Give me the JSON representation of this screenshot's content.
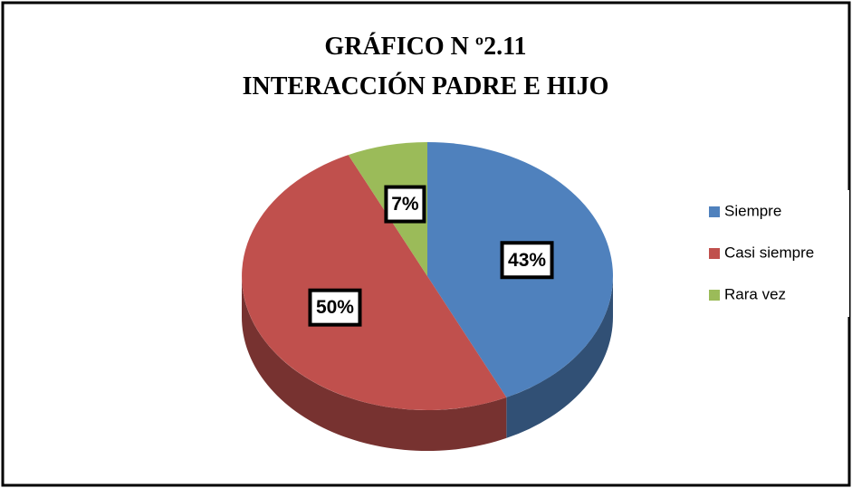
{
  "chart_data": {
    "type": "pie",
    "title": [
      "GRÁFICO N º2.11",
      "INTERACCIÓN PADRE E HIJO"
    ],
    "categories": [
      "Siempre",
      "Casi siempre",
      "Rara vez"
    ],
    "values": [
      43,
      50,
      7
    ],
    "value_labels": [
      "43%",
      "50%",
      "7%"
    ],
    "colors": [
      "#4f81bd",
      "#c0504d",
      "#9bbb59"
    ],
    "legend": "right"
  }
}
